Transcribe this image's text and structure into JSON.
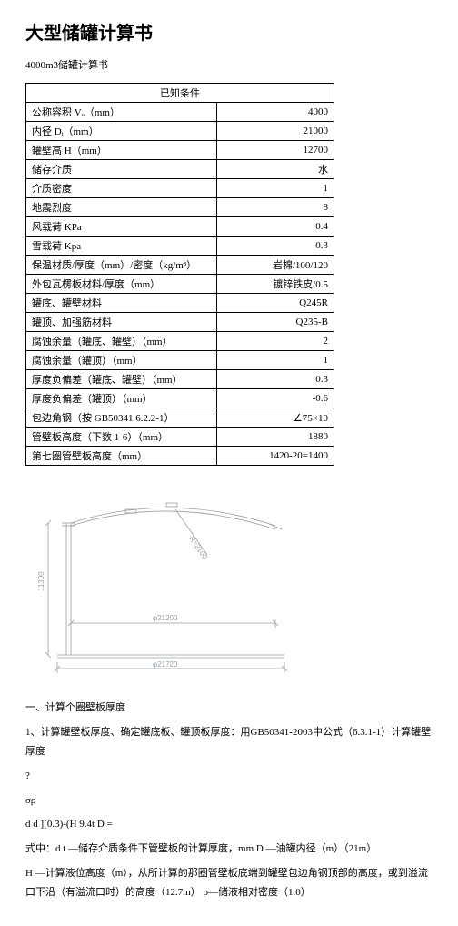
{
  "title": "大型储罐计算书",
  "subtitle": "4000m3储罐计算书",
  "table": {
    "header": "已知条件",
    "rows": [
      {
        "label": "公称容积 Vₒ（mm）",
        "value": "4000"
      },
      {
        "label": "内径 Dᵢ（mm）",
        "value": "21000"
      },
      {
        "label": "罐壁高 H（mm）",
        "value": "12700"
      },
      {
        "label": "储存介质",
        "value": "水"
      },
      {
        "label": "介质密度",
        "value": "1"
      },
      {
        "label": "地震烈度",
        "value": "8"
      },
      {
        "label": "风载荷 KPa",
        "value": "0.4"
      },
      {
        "label": "雪载荷 Kpa",
        "value": "0.3"
      },
      {
        "label": "保温材质/厚度（mm）/密度（kg/m³）",
        "value": "岩棉/100/120"
      },
      {
        "label": "外包瓦楞板材料/厚度（mm）",
        "value": "镀锌铁皮/0.5"
      },
      {
        "label": "罐底、罐壁材料",
        "value": "Q245R"
      },
      {
        "label": "罐顶、加强筋材料",
        "value": "Q235-B"
      },
      {
        "label": "腐蚀余量（罐底、罐壁）（mm）",
        "value": "2"
      },
      {
        "label": "腐蚀余量（罐顶）（mm）",
        "value": "1"
      },
      {
        "label": "厚度负偏差（罐底、罐壁）（mm）",
        "value": "0.3"
      },
      {
        "label": "厚度负偏差（罐顶）（mm）",
        "value": "-0.6"
      },
      {
        "label": "包边角钢（按 GB50341 6.2.2-1）",
        "value": "∠75×10"
      },
      {
        "label": "管壁板高度（下数 1-6）（mm）",
        "value": "1880"
      },
      {
        "label": "第七圈管壁板高度（mm）",
        "value": "1420-20=1400"
      }
    ]
  },
  "diagram": {
    "stroke": "#9aa0a6",
    "text_color": "#9aa0a6",
    "background": "#ffffff",
    "labels": {
      "height": "11300",
      "width_top": "φ21200",
      "width_bot": "φ21720",
      "radius": "R=2100"
    }
  },
  "paragraphs": [
    "一、计算个圈壁板厚度",
    "1、计算罐壁板厚度、确定罐底板、罐顶板厚度：用GB50341-2003中公式（6.3.1-1）计算罐壁厚度",
    "?",
    "σρ",
    "d d ][0.3)-(H 9.4t D =",
    "式中：d t —储存介质条件下管壁板的计算厚度，mm D —油罐内径（m）（21m）",
    "H —计算液位高度（m），从所计算的那圈管壁板底端到罐壁包边角钢顶部的高度，或到溢流口下沿（有溢流口时）的高度（12.7m） ρ—储液相对密度（1.0）"
  ]
}
